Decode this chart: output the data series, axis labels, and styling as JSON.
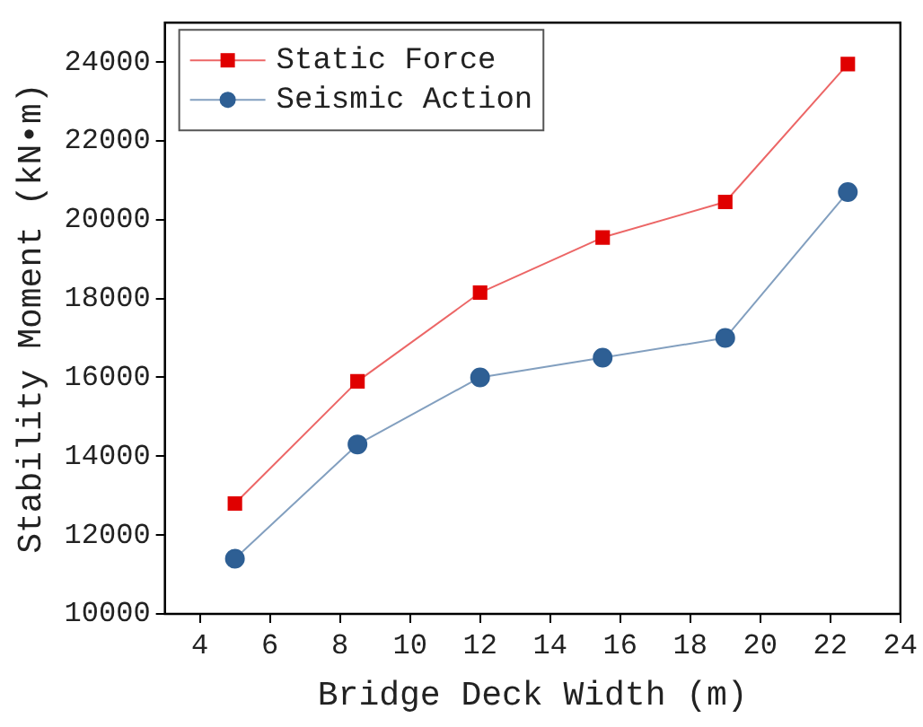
{
  "chart_data": {
    "type": "line",
    "xlabel": "Bridge Deck Width (m)",
    "ylabel": "Stability Moment (kN•m)",
    "x": [
      5,
      8.5,
      12,
      15.5,
      19,
      22.5
    ],
    "series": [
      {
        "name": "Static Force",
        "color": "#e00000",
        "marker": "square",
        "values": [
          12800,
          15900,
          18150,
          19550,
          20450,
          23950
        ]
      },
      {
        "name": "Seismic Action",
        "color": "#2e5f94",
        "marker": "circle",
        "values": [
          11400,
          14300,
          16000,
          16500,
          17000,
          20700
        ]
      }
    ],
    "xlim": [
      3,
      24
    ],
    "xticks": [
      4,
      6,
      8,
      10,
      12,
      14,
      16,
      18,
      20,
      22,
      24
    ],
    "ylim": [
      10000,
      25000
    ],
    "yticks": [
      10000,
      12000,
      14000,
      16000,
      18000,
      20000,
      22000,
      24000
    ],
    "legend": "top left",
    "grid": false,
    "line_style": "solid"
  }
}
